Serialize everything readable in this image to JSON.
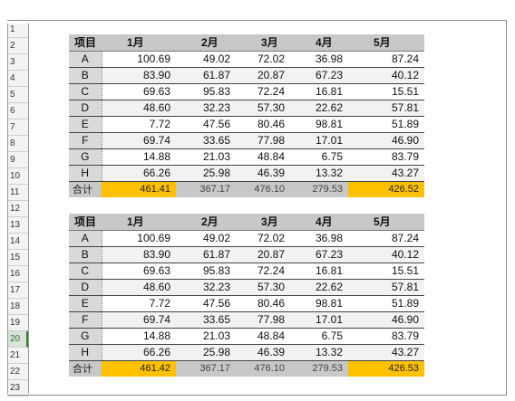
{
  "row_numbers": [
    "1",
    "2",
    "3",
    "4",
    "5",
    "6",
    "7",
    "8",
    "9",
    "10",
    "11",
    "12",
    "13",
    "14",
    "15",
    "16",
    "17",
    "18",
    "19",
    "20",
    "21",
    "22",
    "23"
  ],
  "headers": [
    "项目",
    "1月",
    "2月",
    "3月",
    "4月",
    "5月"
  ],
  "tables": [
    {
      "rows": [
        {
          "item": "A",
          "v": [
            "100.69",
            "49.02",
            "72.02",
            "36.98",
            "87.24"
          ]
        },
        {
          "item": "B",
          "v": [
            "83.90",
            "61.87",
            "20.87",
            "67.23",
            "40.12"
          ]
        },
        {
          "item": "C",
          "v": [
            "69.63",
            "95.83",
            "72.24",
            "16.81",
            "15.51"
          ]
        },
        {
          "item": "D",
          "v": [
            "48.60",
            "32.23",
            "57.30",
            "22.62",
            "57.81"
          ]
        },
        {
          "item": "E",
          "v": [
            "7.72",
            "47.56",
            "80.46",
            "98.81",
            "51.89"
          ]
        },
        {
          "item": "F",
          "v": [
            "69.74",
            "33.65",
            "77.98",
            "17.01",
            "46.90"
          ]
        },
        {
          "item": "G",
          "v": [
            "14.88",
            "21.03",
            "48.84",
            "6.75",
            "83.79"
          ]
        },
        {
          "item": "H",
          "v": [
            "66.26",
            "25.98",
            "46.39",
            "13.32",
            "43.27"
          ]
        }
      ],
      "total": {
        "label": "合计",
        "v": [
          "461.41",
          "367.17",
          "476.10",
          "279.53",
          "426.52"
        ]
      }
    },
    {
      "rows": [
        {
          "item": "A",
          "v": [
            "100.69",
            "49.02",
            "72.02",
            "36.98",
            "87.24"
          ]
        },
        {
          "item": "B",
          "v": [
            "83.90",
            "61.87",
            "20.87",
            "67.23",
            "40.12"
          ]
        },
        {
          "item": "C",
          "v": [
            "69.63",
            "95.83",
            "72.24",
            "16.81",
            "15.51"
          ]
        },
        {
          "item": "D",
          "v": [
            "48.60",
            "32.23",
            "57.30",
            "22.62",
            "57.81"
          ]
        },
        {
          "item": "E",
          "v": [
            "7.72",
            "47.56",
            "80.46",
            "98.81",
            "51.89"
          ]
        },
        {
          "item": "F",
          "v": [
            "69.74",
            "33.65",
            "77.98",
            "17.01",
            "46.90"
          ]
        },
        {
          "item": "G",
          "v": [
            "14.88",
            "21.03",
            "48.84",
            "6.75",
            "83.79"
          ]
        },
        {
          "item": "H",
          "v": [
            "66.26",
            "25.98",
            "46.39",
            "13.32",
            "43.27"
          ]
        }
      ],
      "total": {
        "label": "合计",
        "v": [
          "461.42",
          "367.17",
          "476.10",
          "279.53",
          "426.53"
        ]
      }
    }
  ],
  "colors": {
    "highlight": "#ffc000",
    "header_bg": "#c8c8c8",
    "active_row": "#2e7d32"
  }
}
